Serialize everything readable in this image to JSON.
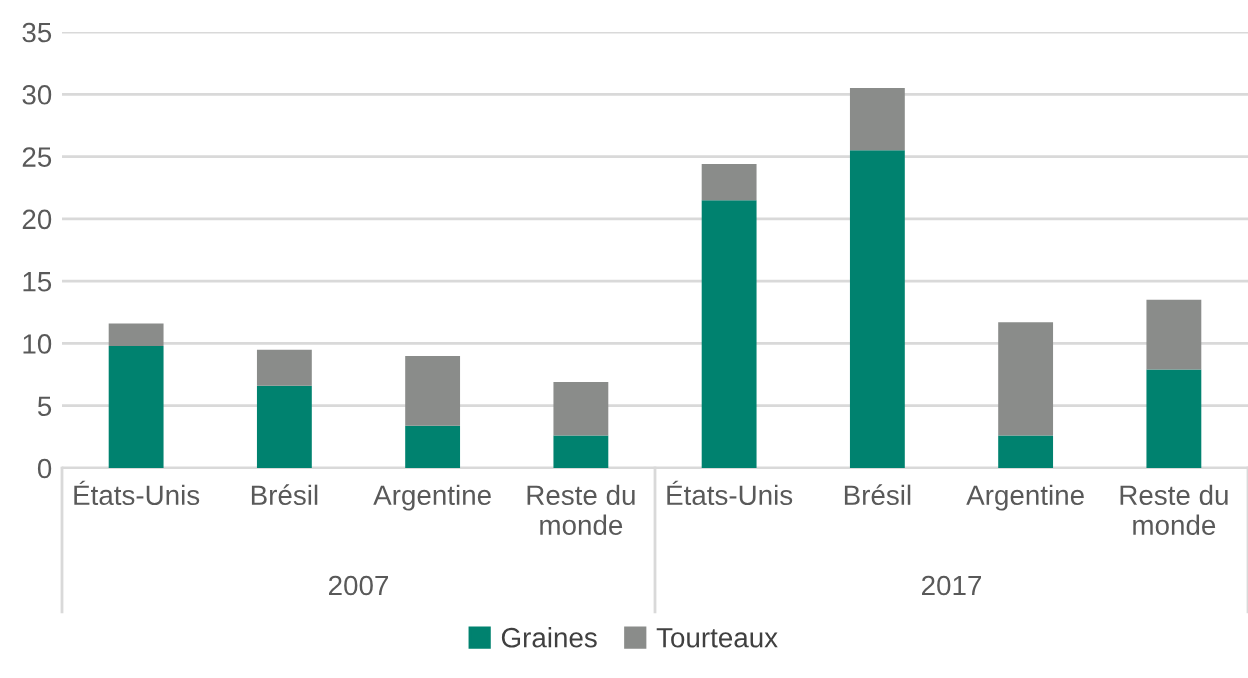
{
  "chart_data": {
    "type": "bar",
    "stacked": true,
    "categories": [
      "États-Unis",
      "Brésil",
      "Argentine",
      "Reste du\nmonde",
      "États-Unis",
      "Brésil",
      "Argentine",
      "Reste du\nmonde"
    ],
    "series": [
      {
        "name": "Graines",
        "color": "#00826f",
        "values": [
          9.8,
          6.6,
          3.4,
          2.6,
          21.5,
          25.5,
          2.6,
          7.9
        ]
      },
      {
        "name": "Tourteaux",
        "color": "#8a8c8a",
        "values": [
          1.8,
          2.9,
          5.6,
          4.3,
          2.9,
          5.0,
          9.1,
          5.6
        ]
      }
    ],
    "annotations": [
      "2007",
      "2017"
    ],
    "ylim": [
      0,
      35
    ],
    "yticks": [
      0,
      5,
      10,
      15,
      20,
      25,
      30,
      35
    ],
    "grid": "y",
    "legend": "bottom"
  }
}
